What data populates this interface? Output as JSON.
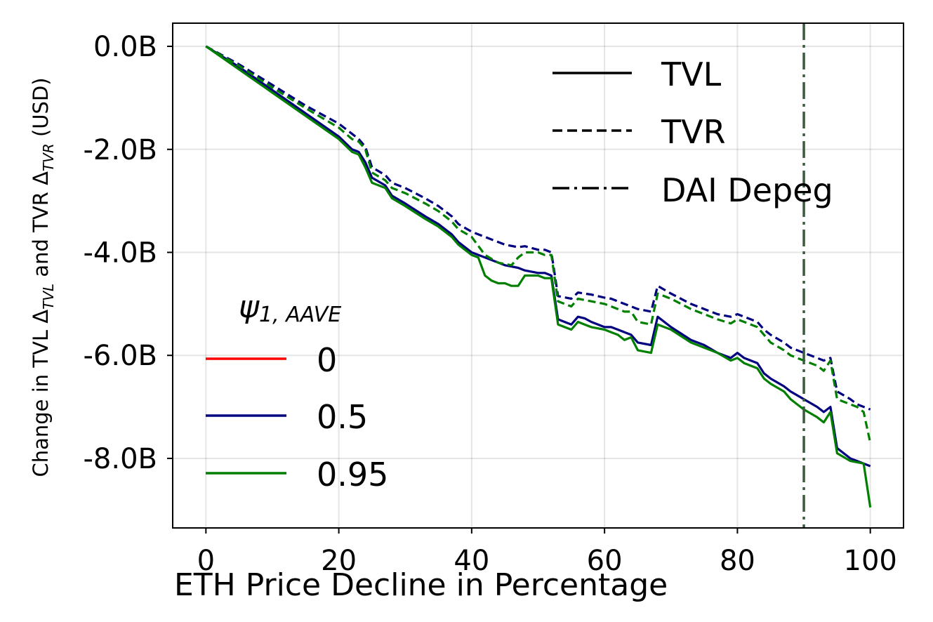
{
  "chart_data": {
    "type": "line",
    "xlabel": "ETH Price Decline in Percentage",
    "ylabel": "Change in TVL Δ_TVL and TVR Δ_TVR (USD)",
    "ylabel_parts": {
      "p1": "Change in TVL Δ",
      "s1": "TVL",
      "p2": " and TVR Δ",
      "s2": "TVR",
      "p3": " (USD)"
    },
    "xlim": [
      -5,
      105
    ],
    "ylim": [
      -9.35,
      0.45
    ],
    "x_ticks": [
      0,
      20,
      40,
      60,
      80,
      100
    ],
    "x_tick_labels": [
      "0",
      "20",
      "40",
      "60",
      "80",
      "100"
    ],
    "y_ticks": [
      0,
      -2,
      -4,
      -6,
      -8
    ],
    "y_tick_labels": [
      "0.0B",
      "-2.0B",
      "-4.0B",
      "-6.0B",
      "-8.0B"
    ],
    "grid": true,
    "vline": {
      "x": 90,
      "label": "DAI Depeg",
      "color": "#3d5a40"
    },
    "style_legend": {
      "position": "top-right",
      "entries": [
        {
          "label": "TVL",
          "style": "solid"
        },
        {
          "label": "TVR",
          "style": "dashed"
        },
        {
          "label": "DAI Depeg",
          "style": "dashdot"
        }
      ]
    },
    "param_legend": {
      "position": "center-left",
      "title": "ψ1, AAVE",
      "title_symbol": "ψ",
      "title_subscript": "1, AAVE",
      "entries": [
        {
          "label": "0",
          "color": "#ff0000"
        },
        {
          "label": "0.5",
          "color": "#00007f"
        },
        {
          "label": "0.95",
          "color": "#007f00"
        }
      ]
    },
    "series": [
      {
        "name": "TVL ψ=0.5",
        "metric": "TVL",
        "psi": "0.5",
        "color": "#00007f",
        "style": "solid",
        "x": [
          0,
          5,
          10,
          15,
          20,
          22,
          23,
          24,
          25,
          27,
          28,
          30,
          33,
          35,
          37,
          38,
          40,
          42,
          45,
          47,
          48,
          50,
          51,
          52,
          53,
          55,
          56,
          57,
          58,
          60,
          61,
          62,
          63,
          64,
          65,
          67,
          68,
          70,
          73,
          75,
          77,
          79,
          80,
          81,
          83,
          84,
          85,
          87,
          88,
          90,
          92,
          93,
          94,
          95,
          97,
          98,
          100
        ],
        "y": [
          0,
          -0.4,
          -0.85,
          -1.3,
          -1.75,
          -2.0,
          -2.05,
          -2.25,
          -2.55,
          -2.7,
          -2.9,
          -3.05,
          -3.3,
          -3.45,
          -3.65,
          -3.8,
          -4.0,
          -4.1,
          -4.25,
          -4.3,
          -4.35,
          -4.4,
          -4.4,
          -4.45,
          -5.3,
          -5.4,
          -5.25,
          -5.28,
          -5.35,
          -5.45,
          -5.45,
          -5.5,
          -5.55,
          -5.6,
          -5.75,
          -5.8,
          -5.25,
          -5.45,
          -5.7,
          -5.8,
          -5.95,
          -6.05,
          -5.95,
          -6.05,
          -6.15,
          -6.35,
          -6.45,
          -6.6,
          -6.7,
          -6.85,
          -7.0,
          -7.1,
          -7.0,
          -7.8,
          -8.0,
          -8.05,
          -8.15
        ]
      },
      {
        "name": "TVL ψ=0.95",
        "metric": "TVL",
        "psi": "0.95",
        "color": "#007f00",
        "style": "solid",
        "x": [
          0,
          5,
          10,
          15,
          20,
          22,
          23,
          24,
          25,
          27,
          28,
          30,
          33,
          35,
          37,
          38,
          40,
          41,
          42,
          43,
          44,
          45,
          46,
          47,
          48,
          50,
          51,
          52,
          53,
          55,
          56,
          57,
          58,
          60,
          61,
          62,
          63,
          64,
          65,
          67,
          68,
          70,
          73,
          75,
          77,
          79,
          80,
          81,
          83,
          84,
          85,
          87,
          88,
          90,
          92,
          93,
          94,
          95,
          97,
          99,
          100
        ],
        "y": [
          0,
          -0.45,
          -0.9,
          -1.35,
          -1.8,
          -2.05,
          -2.1,
          -2.35,
          -2.65,
          -2.75,
          -2.95,
          -3.1,
          -3.35,
          -3.5,
          -3.7,
          -3.85,
          -4.05,
          -4.1,
          -4.45,
          -4.55,
          -4.6,
          -4.6,
          -4.65,
          -4.65,
          -4.45,
          -4.45,
          -4.5,
          -4.5,
          -5.4,
          -5.5,
          -5.35,
          -5.4,
          -5.45,
          -5.5,
          -5.55,
          -5.6,
          -5.7,
          -5.65,
          -5.9,
          -5.95,
          -5.4,
          -5.5,
          -5.75,
          -5.85,
          -5.95,
          -6.1,
          -6.05,
          -6.15,
          -6.25,
          -6.45,
          -6.55,
          -6.7,
          -6.85,
          -7.05,
          -7.2,
          -7.3,
          -7.1,
          -7.9,
          -8.05,
          -8.1,
          -8.95
        ]
      },
      {
        "name": "TVR ψ=0.5",
        "metric": "TVR",
        "psi": "0.5",
        "color": "#00007f",
        "style": "dashed",
        "x": [
          0,
          5,
          10,
          15,
          20,
          22,
          23,
          24,
          25,
          27,
          28,
          30,
          33,
          35,
          37,
          38,
          40,
          42,
          45,
          47,
          48,
          50,
          51,
          52,
          53,
          55,
          56,
          58,
          60,
          61,
          62,
          63,
          64,
          65,
          67,
          68,
          70,
          73,
          75,
          77,
          79,
          80,
          81,
          83,
          84,
          85,
          87,
          88,
          90,
          92,
          93,
          94,
          95,
          97,
          98,
          100
        ],
        "y": [
          0,
          -0.35,
          -0.75,
          -1.15,
          -1.5,
          -1.7,
          -1.8,
          -1.95,
          -2.35,
          -2.5,
          -2.65,
          -2.75,
          -2.95,
          -3.1,
          -3.3,
          -3.45,
          -3.6,
          -3.7,
          -3.85,
          -3.9,
          -3.88,
          -3.95,
          -3.95,
          -4.0,
          -4.85,
          -4.9,
          -4.78,
          -4.82,
          -4.88,
          -4.9,
          -4.95,
          -5.0,
          -5.05,
          -5.1,
          -5.15,
          -4.65,
          -4.8,
          -5.0,
          -5.1,
          -5.2,
          -5.25,
          -5.2,
          -5.25,
          -5.35,
          -5.5,
          -5.6,
          -5.75,
          -5.85,
          -5.95,
          -6.05,
          -6.1,
          -6.05,
          -6.7,
          -6.85,
          -6.95,
          -7.05
        ]
      },
      {
        "name": "TVR ψ=0.95",
        "metric": "TVR",
        "psi": "0.95",
        "color": "#007f00",
        "style": "dashed",
        "x": [
          0,
          5,
          10,
          15,
          20,
          22,
          23,
          24,
          25,
          27,
          28,
          30,
          33,
          35,
          37,
          38,
          40,
          42,
          44,
          46,
          47,
          48,
          50,
          51,
          52,
          53,
          55,
          56,
          58,
          60,
          61,
          62,
          63,
          64,
          65,
          67,
          68,
          70,
          73,
          75,
          77,
          79,
          80,
          81,
          83,
          84,
          85,
          87,
          88,
          90,
          92,
          93,
          94,
          95,
          97,
          98,
          99,
          100
        ],
        "y": [
          0,
          -0.38,
          -0.8,
          -1.2,
          -1.58,
          -1.8,
          -1.85,
          -2.0,
          -2.45,
          -2.6,
          -2.75,
          -2.85,
          -3.05,
          -3.2,
          -3.4,
          -3.55,
          -3.7,
          -4.05,
          -4.2,
          -4.25,
          -4.1,
          -4.0,
          -4.0,
          -4.05,
          -4.05,
          -4.95,
          -5.05,
          -4.9,
          -4.95,
          -5.0,
          -5.05,
          -5.1,
          -5.15,
          -5.15,
          -5.35,
          -5.4,
          -4.8,
          -4.9,
          -5.1,
          -5.2,
          -5.3,
          -5.38,
          -5.3,
          -5.35,
          -5.45,
          -5.6,
          -5.75,
          -5.9,
          -6.0,
          -6.1,
          -6.2,
          -6.3,
          -6.1,
          -6.85,
          -6.95,
          -7.0,
          -7.1,
          -7.7
        ]
      }
    ]
  }
}
